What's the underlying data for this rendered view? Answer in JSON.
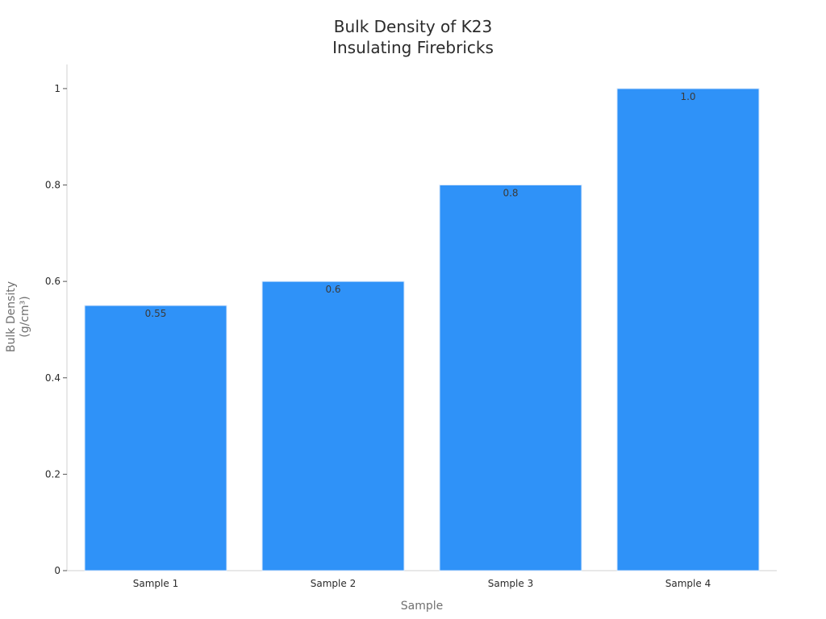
{
  "chart_data": {
    "type": "bar",
    "title": [
      "Bulk Density of K23",
      "Insulating Firebricks"
    ],
    "xlabel": "Sample",
    "ylabel": [
      "Bulk Density",
      "(g/cm³)"
    ],
    "categories": [
      "Sample 1",
      "Sample 2",
      "Sample 3",
      "Sample 4"
    ],
    "values": [
      0.55,
      0.6,
      0.8,
      1.0
    ],
    "data_labels": [
      "0.55",
      "0.6",
      "0.8",
      "1.0"
    ],
    "ylim": [
      0,
      1.05
    ],
    "yticks": [
      0,
      0.2,
      0.4,
      0.6,
      0.8,
      1
    ],
    "ytick_labels": [
      "0",
      "0.2",
      "0.4",
      "0.6",
      "0.8",
      "1"
    ],
    "grid": false,
    "legend": "none",
    "bar_color": "#2f92f8"
  }
}
